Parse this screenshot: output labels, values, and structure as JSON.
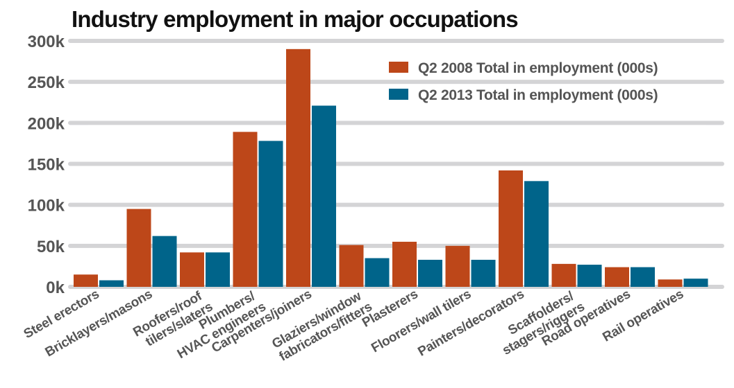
{
  "chart_data": {
    "type": "bar",
    "title": "Industry employment in major occupations",
    "xlabel": "",
    "ylabel": "",
    "ylim": [
      0,
      300
    ],
    "yticks": [
      0,
      50,
      100,
      150,
      200,
      250,
      300
    ],
    "ytick_labels": [
      "0k",
      "50k",
      "100k",
      "150k",
      "200k",
      "250k",
      "300k"
    ],
    "grid": true,
    "legend_position": "top-right",
    "categories": [
      [
        "Steel erectors"
      ],
      [
        "Bricklayers/masons"
      ],
      [
        "Roofers/roof",
        "tilers/slaters"
      ],
      [
        "Plumbers/",
        "HVAC engineers"
      ],
      [
        "Carpenters/joiners"
      ],
      [
        "Glaziers/window",
        "fabricators/fitters"
      ],
      [
        "Plasterers"
      ],
      [
        "Floorers/wall tilers"
      ],
      [
        "Painters/decorators"
      ],
      [
        "Scaffolders/",
        "stagers/riggers"
      ],
      [
        "Road operatives"
      ],
      [
        "Rail operatives"
      ]
    ],
    "series": [
      {
        "name": "Q2 2008 Total in employment (000s)",
        "color": "#bd4719",
        "values": [
          15,
          95,
          42,
          189,
          290,
          51,
          55,
          50,
          142,
          28,
          24,
          9
        ]
      },
      {
        "name": "Q2 2013 Total in employment (000s)",
        "color": "#00648a",
        "values": [
          8,
          62,
          42,
          178,
          221,
          35,
          33,
          33,
          129,
          27,
          24,
          10
        ]
      }
    ],
    "colors": {
      "grid": "#d4d4d6",
      "tick_text": "#555555",
      "title_text": "#111111"
    }
  }
}
